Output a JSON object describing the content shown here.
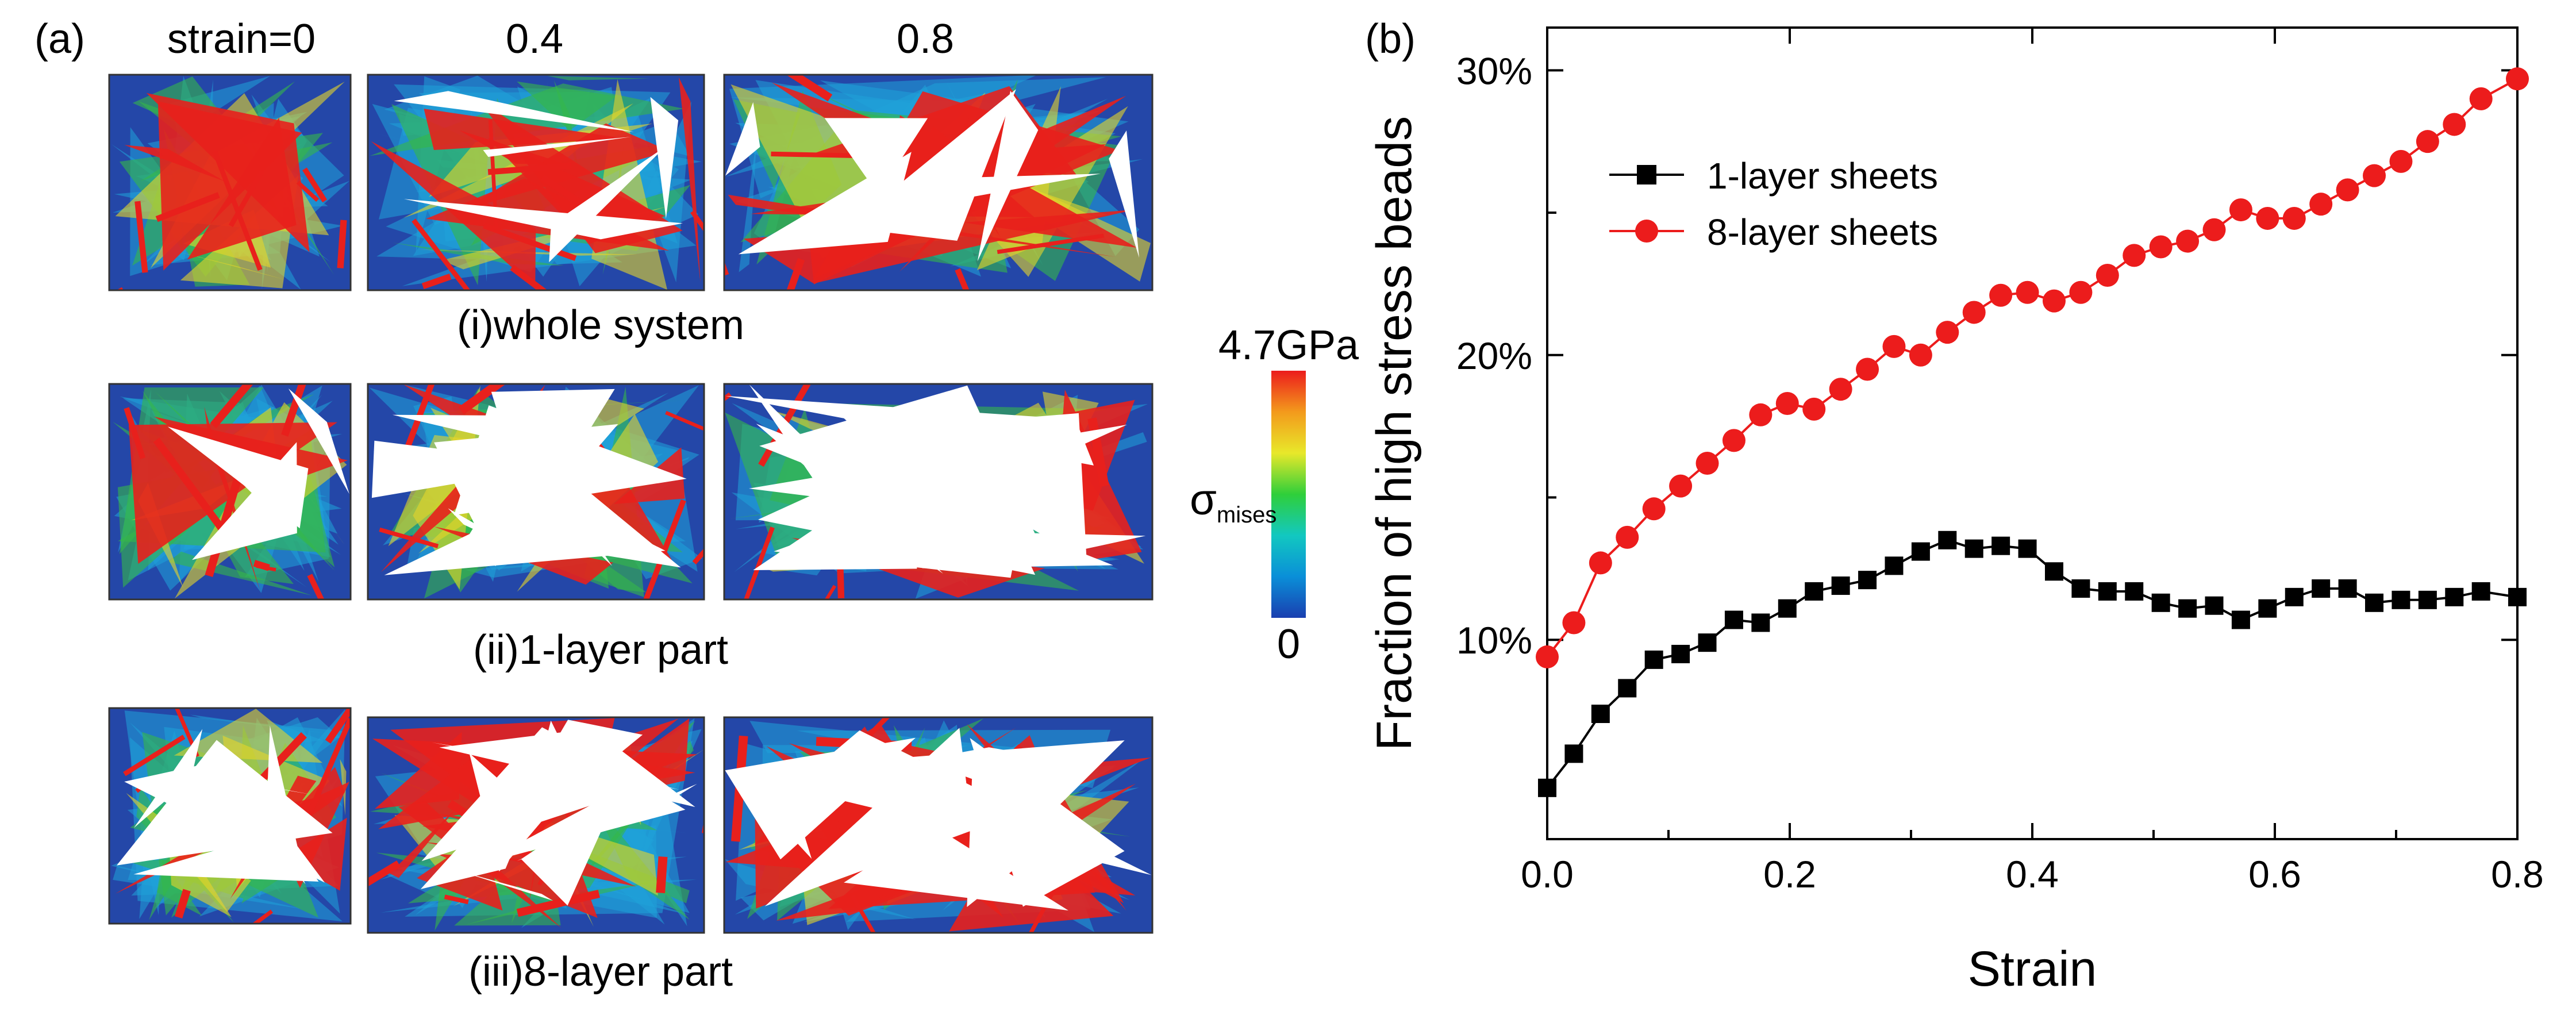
{
  "panel_a": {
    "label": "(a)",
    "col_headers": [
      "strain=0",
      "0.4",
      "0.8"
    ],
    "rows": [
      {
        "caption": "(i)whole system"
      },
      {
        "caption": "(ii)1-layer part"
      },
      {
        "caption": "(iii)8-layer part"
      }
    ],
    "colorbar": {
      "max_label": "4.7GPa",
      "min_label": "0",
      "symbol": "σ",
      "subscript": "mises",
      "colors": [
        "#1a3fb0",
        "#0a8fd8",
        "#12c8c0",
        "#2fcf3a",
        "#e8e82a",
        "#f39a1c",
        "#ec1c1c"
      ]
    },
    "map_colors": {
      "blue": "#2447a8",
      "cyan": "#1fa3d8",
      "green": "#35b84a",
      "yellow": "#e6d62a",
      "red": "#e8201c"
    }
  },
  "chart_data": {
    "type": "line",
    "panel_label": "(b)",
    "xlabel": "Strain",
    "ylabel": "Fraction of high stress beads",
    "xlim": [
      0,
      0.8
    ],
    "ylim": [
      0.03,
      0.315
    ],
    "xticks": [
      0.0,
      0.2,
      0.4,
      0.6,
      0.8
    ],
    "xtick_labels": [
      "0.0",
      "0.2",
      "0.4",
      "0.6",
      "0.8"
    ],
    "yticks": [
      0.1,
      0.2,
      0.3
    ],
    "ytick_labels": [
      "10%",
      "20%",
      "30%"
    ],
    "legend_position": "top-left",
    "series": [
      {
        "name": "1-layer sheets",
        "color": "#000000",
        "marker": "square",
        "x": [
          0.0,
          0.022,
          0.044,
          0.066,
          0.088,
          0.11,
          0.132,
          0.154,
          0.176,
          0.198,
          0.22,
          0.242,
          0.264,
          0.286,
          0.308,
          0.33,
          0.352,
          0.374,
          0.396,
          0.418,
          0.44,
          0.462,
          0.484,
          0.506,
          0.528,
          0.55,
          0.572,
          0.594,
          0.616,
          0.638,
          0.66,
          0.682,
          0.704,
          0.726,
          0.748,
          0.77,
          0.8
        ],
        "y": [
          0.048,
          0.06,
          0.074,
          0.083,
          0.093,
          0.095,
          0.099,
          0.107,
          0.106,
          0.111,
          0.117,
          0.119,
          0.121,
          0.126,
          0.131,
          0.135,
          0.132,
          0.133,
          0.132,
          0.124,
          0.118,
          0.117,
          0.117,
          0.113,
          0.111,
          0.112,
          0.107,
          0.111,
          0.115,
          0.118,
          0.118,
          0.113,
          0.114,
          0.114,
          0.115,
          0.117,
          0.115
        ]
      },
      {
        "name": "8-layer sheets",
        "color": "#ec1c1c",
        "marker": "circle",
        "x": [
          0.0,
          0.022,
          0.044,
          0.066,
          0.088,
          0.11,
          0.132,
          0.154,
          0.176,
          0.198,
          0.22,
          0.242,
          0.264,
          0.286,
          0.308,
          0.33,
          0.352,
          0.374,
          0.396,
          0.418,
          0.44,
          0.462,
          0.484,
          0.506,
          0.528,
          0.55,
          0.572,
          0.594,
          0.616,
          0.638,
          0.66,
          0.682,
          0.704,
          0.726,
          0.748,
          0.77,
          0.8
        ],
        "y": [
          0.094,
          0.106,
          0.127,
          0.136,
          0.146,
          0.154,
          0.162,
          0.17,
          0.179,
          0.183,
          0.181,
          0.188,
          0.195,
          0.203,
          0.2,
          0.208,
          0.215,
          0.221,
          0.222,
          0.219,
          0.222,
          0.228,
          0.235,
          0.238,
          0.24,
          0.244,
          0.251,
          0.248,
          0.248,
          0.253,
          0.258,
          0.263,
          0.268,
          0.275,
          0.281,
          0.29,
          0.297
        ]
      }
    ]
  }
}
